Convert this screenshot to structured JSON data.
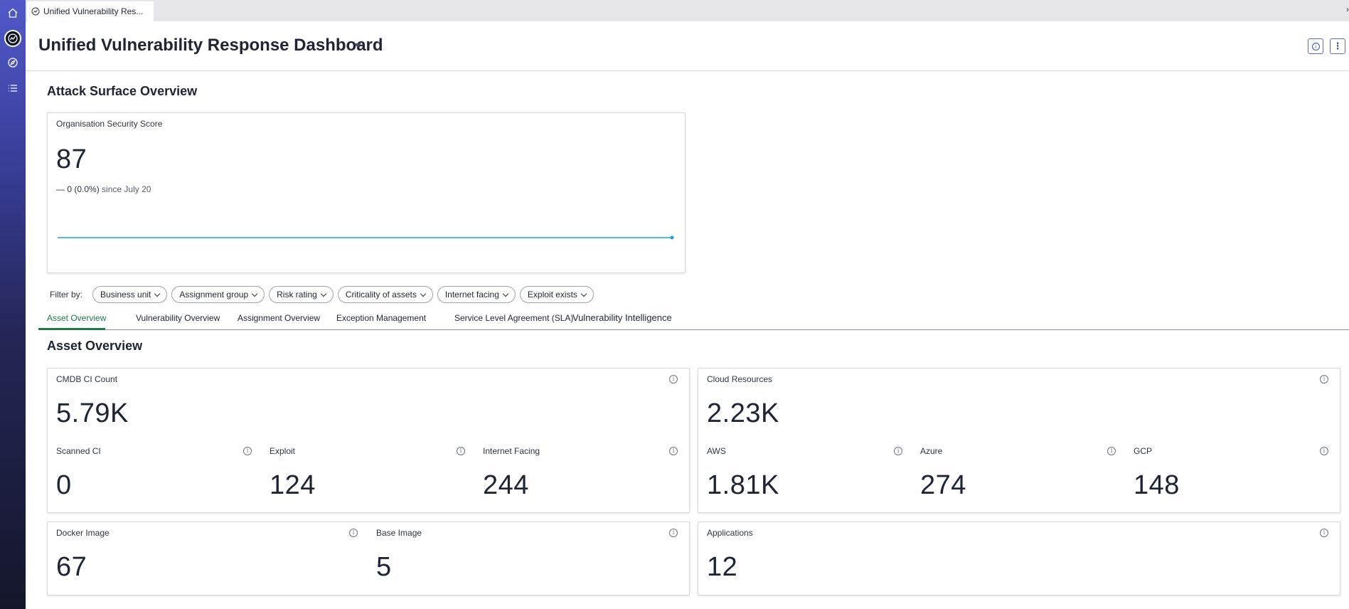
{
  "browser_tab": {
    "title": "Unified Vulnerability Res..."
  },
  "rail": {
    "items": [
      "home-icon",
      "dashboard-icon",
      "compass-icon",
      "list-icon"
    ]
  },
  "header": {
    "title": "Unified Vulnerability Response Dashboard",
    "info_button": "i",
    "more_button": "⋮"
  },
  "attack_surface": {
    "title": "Attack Surface Overview",
    "score_card": {
      "label": "Organisation Security Score",
      "value": "87",
      "delta_dash": "—",
      "delta_value": "0 (0.0%)",
      "delta_since": "since July 20",
      "accent_color": "#1aa3d6"
    }
  },
  "filters": {
    "label": "Filter by:",
    "chips": [
      "Business unit",
      "Assignment group",
      "Risk rating",
      "Criticality of assets",
      "Internet facing",
      "Exploit exists"
    ]
  },
  "tabs": {
    "items": [
      "Asset Overview",
      "Vulnerability Overview",
      "Assignment Overview",
      "Exception Management",
      "Service Level Agreement (SLA)",
      "Vulnerability Intelligence"
    ],
    "active": "Asset Overview",
    "active_color": "#1e7a45"
  },
  "asset_overview": {
    "title": "Asset Overview",
    "cmdb": {
      "label": "CMDB CI Count",
      "value": "5.79K",
      "sub": [
        {
          "label": "Scanned CI",
          "value": "0"
        },
        {
          "label": "Exploit",
          "value": "124"
        },
        {
          "label": "Internet Facing",
          "value": "244"
        }
      ]
    },
    "cloud": {
      "label": "Cloud Resources",
      "value": "2.23K",
      "sub": [
        {
          "label": "AWS",
          "value": "1.81K"
        },
        {
          "label": "Azure",
          "value": "274"
        },
        {
          "label": "GCP",
          "value": "148"
        }
      ]
    },
    "docker": {
      "label": "Docker Image",
      "value": "67"
    },
    "base": {
      "label": "Base Image",
      "value": "5"
    },
    "applications": {
      "label": "Applications",
      "value": "12"
    }
  }
}
